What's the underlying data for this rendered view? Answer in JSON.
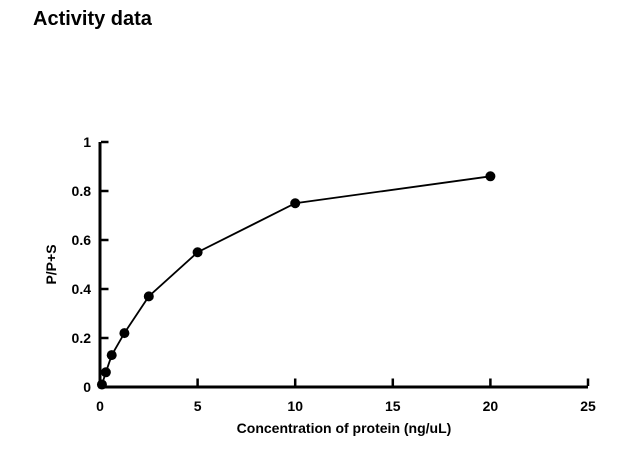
{
  "page": {
    "background": "#ffffff",
    "foreground": "#000000"
  },
  "chart_data": {
    "type": "line",
    "title": "Activity data",
    "xlabel": "Concentration of protein (ng/uL)",
    "ylabel": "P/P+S",
    "x": [
      0.1,
      0.3,
      0.6,
      1.25,
      2.5,
      5,
      10,
      20
    ],
    "y": [
      0.01,
      0.06,
      0.13,
      0.22,
      0.37,
      0.55,
      0.75,
      0.86
    ],
    "xlim": [
      0,
      25
    ],
    "ylim": [
      0,
      1
    ],
    "xticks": [
      0,
      5,
      10,
      15,
      20,
      25
    ],
    "xtick_labels": [
      "0",
      "5",
      "10",
      "15",
      "20",
      "25"
    ],
    "yticks": [
      0,
      0.2,
      0.4,
      0.6,
      0.8,
      1
    ],
    "ytick_labels": [
      "0",
      "0.2",
      "0.4",
      "0.6",
      "0.8",
      "1"
    ],
    "grid": false,
    "legend": "none",
    "marker": "filled-circle",
    "marker_radius_px": 5,
    "line_color": "#000000",
    "marker_color": "#000000",
    "axis_color": "#000000",
    "tick_direction": "in",
    "background": "#ffffff"
  }
}
